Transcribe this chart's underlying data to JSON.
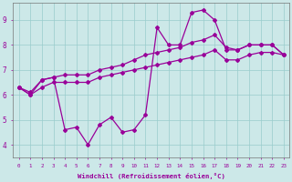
{
  "xlabel": "Windchill (Refroidissement éolien,°C)",
  "xlim": [
    -0.5,
    23.5
  ],
  "ylim": [
    3.5,
    9.7
  ],
  "xticks": [
    0,
    1,
    2,
    3,
    4,
    5,
    6,
    7,
    8,
    9,
    10,
    11,
    12,
    13,
    14,
    15,
    16,
    17,
    18,
    19,
    20,
    21,
    22,
    23
  ],
  "yticks": [
    4,
    5,
    6,
    7,
    8,
    9
  ],
  "bg_color": "#cce8e8",
  "grid_color": "#99cccc",
  "line_color": "#990099",
  "smooth_upper_x": [
    0,
    1,
    2,
    3,
    4,
    5,
    6,
    7,
    8,
    9,
    10,
    11,
    12,
    13,
    14,
    15,
    16,
    17,
    18,
    19,
    20,
    21,
    22,
    23
  ],
  "smooth_upper_y": [
    6.3,
    6.1,
    6.6,
    6.7,
    6.8,
    6.8,
    6.8,
    7.0,
    7.1,
    7.2,
    7.4,
    7.6,
    7.7,
    7.8,
    7.9,
    8.1,
    8.2,
    8.4,
    7.9,
    7.8,
    8.0,
    8.0,
    8.0,
    7.6
  ],
  "smooth_lower_x": [
    0,
    1,
    2,
    3,
    4,
    5,
    6,
    7,
    8,
    9,
    10,
    11,
    12,
    13,
    14,
    15,
    16,
    17,
    18,
    19,
    20,
    21,
    22,
    23
  ],
  "smooth_lower_y": [
    6.3,
    6.0,
    6.3,
    6.5,
    6.5,
    6.5,
    6.5,
    6.7,
    6.8,
    6.9,
    7.0,
    7.1,
    7.2,
    7.3,
    7.4,
    7.5,
    7.6,
    7.8,
    7.4,
    7.4,
    7.6,
    7.7,
    7.7,
    7.6
  ],
  "jagged_x": [
    0,
    1,
    2,
    3,
    4,
    5,
    6,
    7,
    8,
    9,
    10,
    11,
    12,
    13,
    14,
    15,
    16,
    17,
    18,
    19,
    20,
    21,
    22,
    23
  ],
  "jagged_y": [
    6.3,
    6.0,
    6.6,
    6.7,
    4.6,
    4.7,
    4.0,
    4.8,
    5.1,
    4.5,
    4.6,
    5.2,
    8.7,
    8.0,
    8.0,
    9.3,
    9.4,
    9.0,
    7.8,
    7.8,
    8.0,
    8.0,
    8.0,
    7.6
  ]
}
